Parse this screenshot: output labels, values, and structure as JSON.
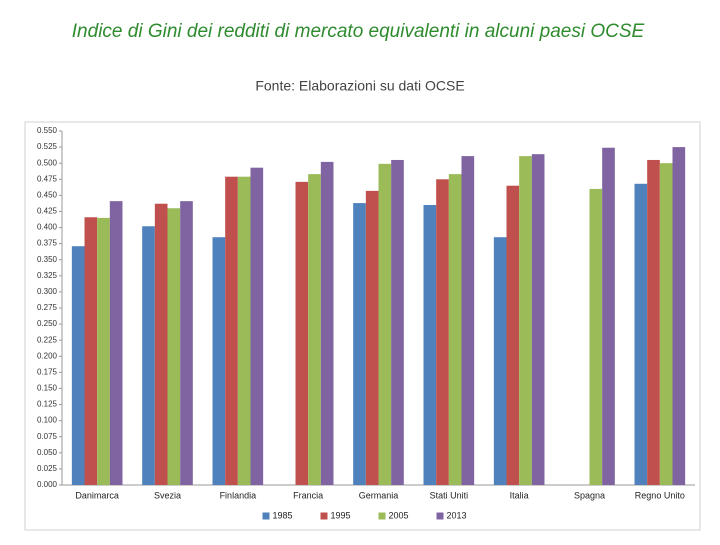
{
  "chart_data": {
    "type": "bar",
    "title": "Indice di Gini dei redditi di mercato equivalenti in alcuni paesi OCSE",
    "subtitle": "Fonte: Elaborazioni su dati OCSE",
    "categories": [
      "Danimarca",
      "Svezia",
      "Finlandia",
      "Francia",
      "Germania",
      "Stati Uniti",
      "Italia",
      "Spagna",
      "Regno Unito"
    ],
    "series": [
      {
        "name": "1985",
        "color": "#4f81bd",
        "values": [
          0.371,
          0.402,
          0.385,
          null,
          0.438,
          0.435,
          0.385,
          null,
          0.468
        ]
      },
      {
        "name": "1995",
        "color": "#c0504d",
        "values": [
          0.416,
          0.437,
          0.479,
          0.471,
          0.457,
          0.475,
          0.465,
          null,
          0.505
        ]
      },
      {
        "name": "2005",
        "color": "#9bbb59",
        "values": [
          0.415,
          0.43,
          0.479,
          0.483,
          0.499,
          0.483,
          0.511,
          0.46,
          0.5
        ]
      },
      {
        "name": "2013",
        "color": "#8064a2",
        "values": [
          0.441,
          0.441,
          0.493,
          0.502,
          0.505,
          0.511,
          0.514,
          0.524,
          0.525
        ]
      }
    ],
    "ylim": [
      0,
      0.55
    ],
    "yticks": [
      {
        "value": 0,
        "label": "0.000"
      },
      {
        "value": 0.025,
        "label": "0.025"
      },
      {
        "value": 0.05,
        "label": "0.050"
      },
      {
        "value": 0.075,
        "label": "0.075"
      },
      {
        "value": 0.1,
        "label": "0.100"
      },
      {
        "value": 0.125,
        "label": "0.125"
      },
      {
        "value": 0.15,
        "label": "0.150"
      },
      {
        "value": 0.175,
        "label": "0.175"
      },
      {
        "value": 0.2,
        "label": "0.200"
      },
      {
        "value": 0.225,
        "label": "0.225"
      },
      {
        "value": 0.25,
        "label": "0.250"
      },
      {
        "value": 0.275,
        "label": "0.275"
      },
      {
        "value": 0.3,
        "label": "0.300"
      },
      {
        "value": 0.325,
        "label": "0.325"
      },
      {
        "value": 0.35,
        "label": "0.350"
      },
      {
        "value": 0.375,
        "label": "0.375"
      },
      {
        "value": 0.4,
        "label": "0.400"
      },
      {
        "value": 0.425,
        "label": "0.425"
      },
      {
        "value": 0.45,
        "label": "0.450"
      },
      {
        "value": 0.475,
        "label": "0.475"
      },
      {
        "value": 0.5,
        "label": "0.500"
      },
      {
        "value": 0.525,
        "label": "0.525"
      },
      {
        "value": 0.55,
        "label": "0.550"
      }
    ],
    "grid": false,
    "legend": "bottom"
  }
}
